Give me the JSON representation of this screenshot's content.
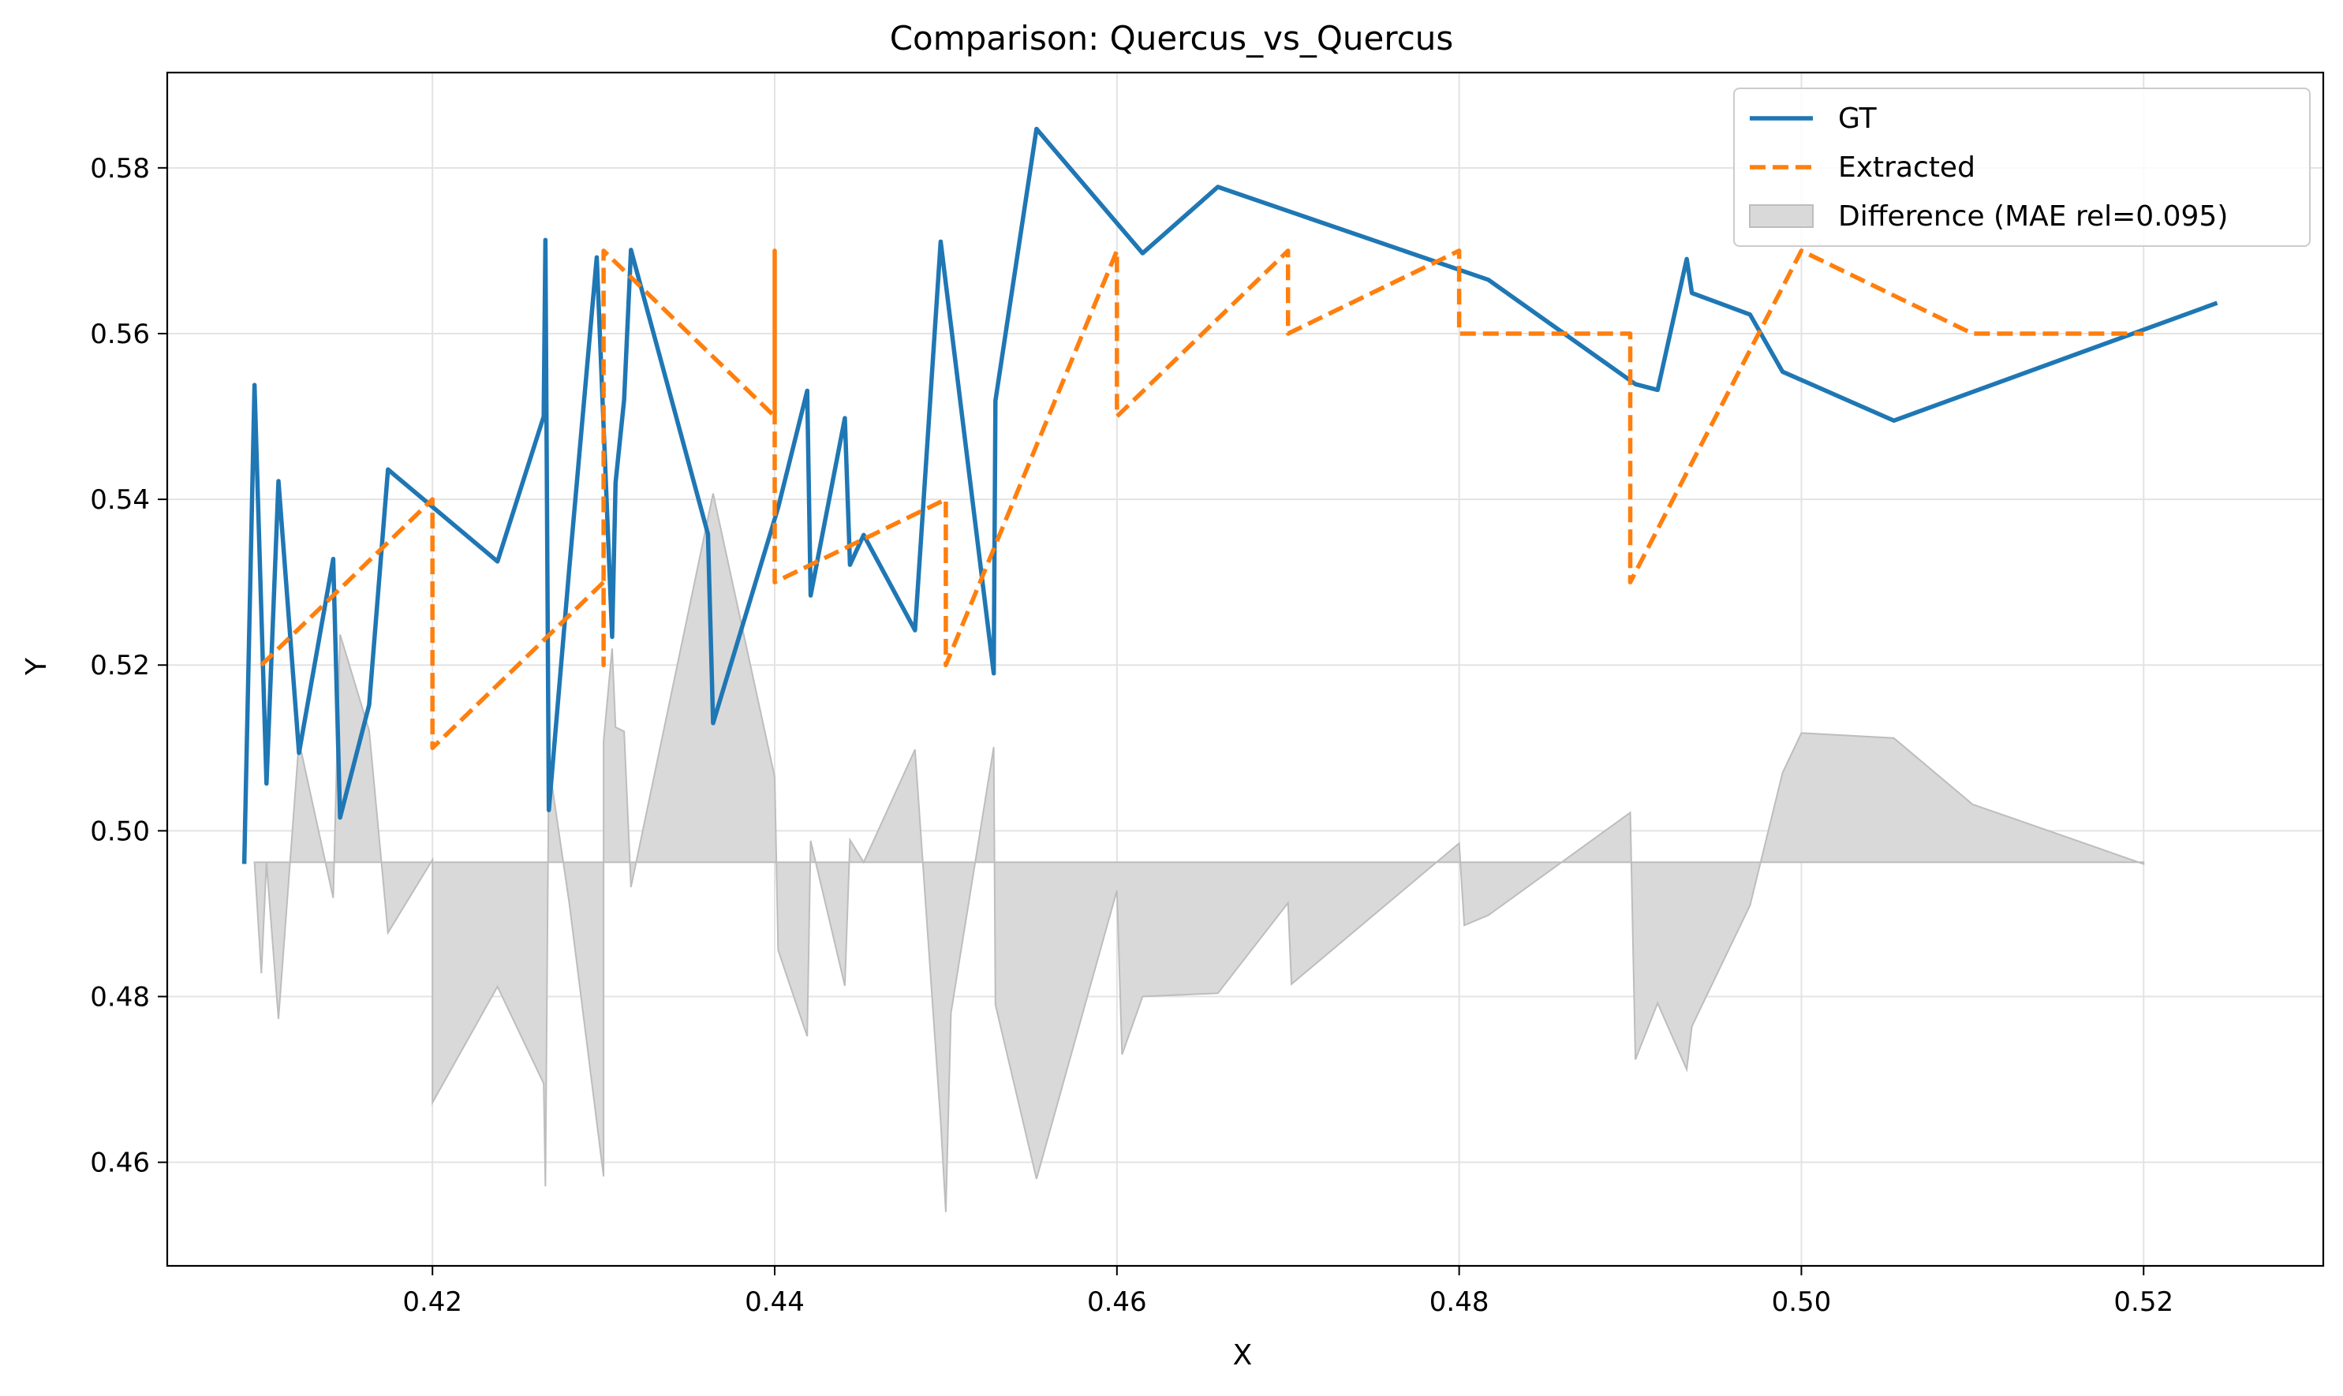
{
  "chart_data": {
    "type": "line",
    "title": "Comparison: Quercus_vs_Quercus",
    "xlabel": "X",
    "ylabel": "Y",
    "xlim": [
      0.4045,
      0.5305
    ],
    "ylim": [
      0.4475,
      0.5915
    ],
    "xticks": [
      0.42,
      0.44,
      0.46,
      0.48,
      0.5,
      0.52
    ],
    "xtick_labels": [
      "0.42",
      "0.44",
      "0.46",
      "0.48",
      "0.50",
      "0.52"
    ],
    "yticks": [
      0.46,
      0.48,
      0.5,
      0.52,
      0.54,
      0.56,
      0.58
    ],
    "ytick_labels": [
      "0.46",
      "0.48",
      "0.50",
      "0.52",
      "0.54",
      "0.56",
      "0.58"
    ],
    "grid": true,
    "legend_position": "top-right",
    "series": [
      {
        "name": "GT",
        "style": "solid",
        "color": "#1f77b4",
        "x": [
          0.409,
          0.4096,
          0.4103,
          0.411,
          0.4122,
          0.4142,
          0.4146,
          0.4163,
          0.4174,
          0.4238,
          0.4265,
          0.4266,
          0.4268,
          0.428,
          0.4296,
          0.4305,
          0.4307,
          0.4312,
          0.4316,
          0.4361,
          0.4364,
          0.4402,
          0.4419,
          0.4421,
          0.4441,
          0.4444,
          0.4452,
          0.4482,
          0.4497,
          0.4528,
          0.4529,
          0.4553,
          0.4615,
          0.4659,
          0.4817,
          0.4903,
          0.4916,
          0.4933,
          0.4936,
          0.497,
          0.4989,
          0.5054,
          0.5243
        ],
        "y": [
          0.496,
          0.5538,
          0.5057,
          0.5422,
          0.5094,
          0.5328,
          0.5016,
          0.5152,
          0.5436,
          0.5325,
          0.55,
          0.5713,
          0.5025,
          0.5318,
          0.5692,
          0.5234,
          0.542,
          0.552,
          0.5701,
          0.5358,
          0.513,
          0.539,
          0.5531,
          0.5284,
          0.5498,
          0.5321,
          0.5357,
          0.5242,
          0.5711,
          0.519,
          0.5519,
          0.5847,
          0.5697,
          0.5777,
          0.5665,
          0.5539,
          0.5532,
          0.569,
          0.5649,
          0.5623,
          0.5554,
          0.5495,
          0.5637
        ]
      },
      {
        "name": "Extracted",
        "style": "dashed",
        "color": "#ff7f0e",
        "x": [
          0.41,
          0.42,
          0.42,
          0.43,
          0.43,
          0.43,
          0.44,
          0.44,
          0.44,
          0.45,
          0.45,
          0.46,
          0.46,
          0.47,
          0.47,
          0.48,
          0.48,
          0.49,
          0.49,
          0.5,
          0.51,
          0.52
        ],
        "y": [
          0.52,
          0.54,
          0.51,
          0.53,
          0.52,
          0.57,
          0.55,
          0.57,
          0.53,
          0.54,
          0.52,
          0.57,
          0.55,
          0.57,
          0.56,
          0.57,
          0.56,
          0.56,
          0.53,
          0.57,
          0.56,
          0.56
        ]
      }
    ],
    "difference": {
      "name": "Difference (MAE rel=0.095)",
      "color": "#d9d9d9",
      "edge_color": "#bdbdbd",
      "baseline": 0.4962,
      "x": [
        0.4096,
        0.41,
        0.4103,
        0.411,
        0.4122,
        0.4142,
        0.4146,
        0.4163,
        0.4174,
        0.42,
        0.42,
        0.4238,
        0.4265,
        0.4266,
        0.4268,
        0.428,
        0.43,
        0.43,
        0.4305,
        0.4307,
        0.4312,
        0.4316,
        0.4364,
        0.44,
        0.4402,
        0.4419,
        0.4421,
        0.4441,
        0.4444,
        0.4452,
        0.4482,
        0.4497,
        0.45,
        0.4503,
        0.4528,
        0.4529,
        0.4553,
        0.46,
        0.4603,
        0.4615,
        0.4659,
        0.47,
        0.4702,
        0.48,
        0.4803,
        0.4817,
        0.49,
        0.4903,
        0.4916,
        0.4933,
        0.4936,
        0.497,
        0.4989,
        0.5,
        0.5054,
        0.51,
        0.52
      ],
      "y": [
        0.4962,
        0.4828,
        0.4962,
        0.4773,
        0.5108,
        0.4919,
        0.5237,
        0.5121,
        0.4877,
        0.4965,
        0.4672,
        0.4812,
        0.4695,
        0.4571,
        0.5081,
        0.4912,
        0.4583,
        0.5108,
        0.522,
        0.5125,
        0.512,
        0.4932,
        0.5407,
        0.5065,
        0.4856,
        0.4752,
        0.4988,
        0.4813,
        0.4989,
        0.4962,
        0.5098,
        0.4649,
        0.454,
        0.478,
        0.5101,
        0.479,
        0.458,
        0.4928,
        0.473,
        0.48,
        0.4804,
        0.4913,
        0.4815,
        0.4985,
        0.4886,
        0.4898,
        0.5022,
        0.4724,
        0.4792,
        0.4712,
        0.4764,
        0.491,
        0.507,
        0.5118,
        0.5112,
        0.5032,
        0.496
      ]
    }
  }
}
